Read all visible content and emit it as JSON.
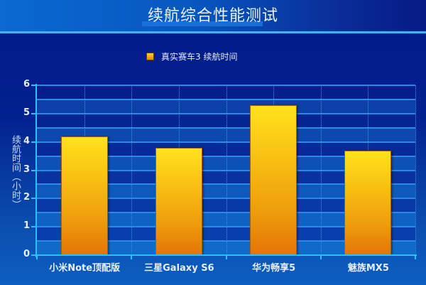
{
  "header": {
    "title": "续航综合性能测试"
  },
  "legend": {
    "label": "真实赛车3 续航时间",
    "color": "#f5b010"
  },
  "axis": {
    "ylabel": "续航时间（小时）",
    "yticks": [
      "0",
      "1",
      "2",
      "3",
      "4",
      "5",
      "6"
    ]
  },
  "bars": [
    {
      "label": "小米Note顶配版",
      "value": 4.2
    },
    {
      "label": "三星Galaxy S6",
      "value": 3.8
    },
    {
      "label": "华为畅享5",
      "value": 5.3
    },
    {
      "label": "魅族MX5",
      "value": 3.7
    }
  ],
  "chart_data": {
    "type": "bar",
    "title": "续航综合性能测试",
    "categories": [
      "小米Note顶配版",
      "三星Galaxy S6",
      "华为畅享5",
      "魅族MX5"
    ],
    "series": [
      {
        "name": "真实赛车3 续航时间",
        "values": [
          4.2,
          3.8,
          5.3,
          3.7
        ]
      }
    ],
    "xlabel": "",
    "ylabel": "续航时间（小时）",
    "ylim": [
      0,
      6
    ],
    "yticks": [
      0,
      1,
      2,
      3,
      4,
      5,
      6
    ],
    "grid": true,
    "legend_position": "top"
  }
}
